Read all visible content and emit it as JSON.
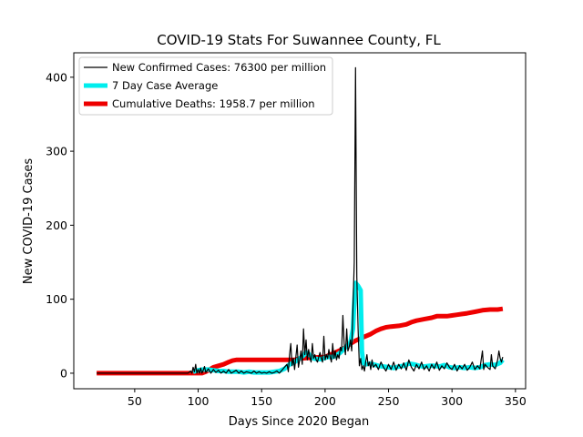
{
  "chart_data": {
    "type": "line",
    "title": "COVID-19 Stats For Suwannee County, FL",
    "xlabel": "Days Since 2020 Began",
    "ylabel": "New COVID-19 Cases",
    "xlim": [
      2,
      358
    ],
    "ylim": [
      -21,
      433
    ],
    "x_ticks": [
      50,
      100,
      150,
      200,
      250,
      300,
      350
    ],
    "y_ticks": [
      0,
      100,
      200,
      300,
      400
    ],
    "grid": false,
    "legend_position": "top-left",
    "series": [
      {
        "name": "New Confirmed Cases: 76300 per million",
        "color": "#000000",
        "points": [
          [
            20,
            0
          ],
          [
            30,
            0
          ],
          [
            40,
            0
          ],
          [
            50,
            0
          ],
          [
            60,
            0
          ],
          [
            70,
            0
          ],
          [
            80,
            0
          ],
          [
            88,
            0
          ],
          [
            92,
            0
          ],
          [
            94,
            3
          ],
          [
            95,
            0
          ],
          [
            96,
            8
          ],
          [
            97,
            2
          ],
          [
            98,
            12
          ],
          [
            99,
            0
          ],
          [
            100,
            5
          ],
          [
            101,
            0
          ],
          [
            102,
            7
          ],
          [
            103,
            0
          ],
          [
            104,
            4
          ],
          [
            105,
            9
          ],
          [
            106,
            1
          ],
          [
            108,
            6
          ],
          [
            110,
            0
          ],
          [
            112,
            5
          ],
          [
            114,
            1
          ],
          [
            116,
            4
          ],
          [
            118,
            0
          ],
          [
            120,
            3
          ],
          [
            122,
            0
          ],
          [
            124,
            5
          ],
          [
            126,
            0
          ],
          [
            128,
            2
          ],
          [
            130,
            4
          ],
          [
            132,
            0
          ],
          [
            134,
            3
          ],
          [
            136,
            0
          ],
          [
            138,
            2
          ],
          [
            140,
            1
          ],
          [
            142,
            0
          ],
          [
            144,
            3
          ],
          [
            146,
            0
          ],
          [
            148,
            2
          ],
          [
            150,
            0
          ],
          [
            152,
            1
          ],
          [
            154,
            0
          ],
          [
            156,
            2
          ],
          [
            158,
            0
          ],
          [
            160,
            1
          ],
          [
            162,
            3
          ],
          [
            164,
            0
          ],
          [
            166,
            4
          ],
          [
            168,
            8
          ],
          [
            170,
            12
          ],
          [
            171,
            2
          ],
          [
            172,
            25
          ],
          [
            173,
            40
          ],
          [
            174,
            10
          ],
          [
            175,
            20
          ],
          [
            176,
            5
          ],
          [
            177,
            22
          ],
          [
            178,
            38
          ],
          [
            179,
            8
          ],
          [
            180,
            18
          ],
          [
            181,
            30
          ],
          [
            182,
            12
          ],
          [
            183,
            60
          ],
          [
            184,
            25
          ],
          [
            185,
            45
          ],
          [
            186,
            18
          ],
          [
            187,
            32
          ],
          [
            188,
            22
          ],
          [
            189,
            15
          ],
          [
            190,
            40
          ],
          [
            191,
            20
          ],
          [
            192,
            25
          ],
          [
            193,
            18
          ],
          [
            194,
            15
          ],
          [
            195,
            22
          ],
          [
            196,
            28
          ],
          [
            197,
            20
          ],
          [
            198,
            15
          ],
          [
            199,
            50
          ],
          [
            200,
            18
          ],
          [
            201,
            25
          ],
          [
            202,
            20
          ],
          [
            203,
            32
          ],
          [
            204,
            22
          ],
          [
            205,
            15
          ],
          [
            206,
            40
          ],
          [
            207,
            20
          ],
          [
            208,
            30
          ],
          [
            209,
            18
          ],
          [
            210,
            25
          ],
          [
            211,
            20
          ],
          [
            212,
            35
          ],
          [
            213,
            30
          ],
          [
            214,
            78
          ],
          [
            215,
            40
          ],
          [
            216,
            25
          ],
          [
            217,
            60
          ],
          [
            218,
            30
          ],
          [
            219,
            35
          ],
          [
            220,
            45
          ],
          [
            221,
            30
          ],
          [
            222,
            90
          ],
          [
            223,
            150
          ],
          [
            224,
            413
          ],
          [
            225,
            130
          ],
          [
            226,
            60
          ],
          [
            227,
            10
          ],
          [
            228,
            20
          ],
          [
            229,
            5
          ],
          [
            230,
            10
          ],
          [
            231,
            3
          ],
          [
            232,
            15
          ],
          [
            233,
            25
          ],
          [
            234,
            10
          ],
          [
            235,
            15
          ],
          [
            236,
            5
          ],
          [
            237,
            18
          ],
          [
            238,
            8
          ],
          [
            240,
            12
          ],
          [
            242,
            5
          ],
          [
            244,
            15
          ],
          [
            246,
            8
          ],
          [
            248,
            3
          ],
          [
            250,
            12
          ],
          [
            252,
            5
          ],
          [
            254,
            15
          ],
          [
            256,
            4
          ],
          [
            258,
            12
          ],
          [
            260,
            6
          ],
          [
            262,
            14
          ],
          [
            264,
            4
          ],
          [
            266,
            18
          ],
          [
            268,
            8
          ],
          [
            270,
            3
          ],
          [
            272,
            12
          ],
          [
            274,
            6
          ],
          [
            276,
            15
          ],
          [
            278,
            5
          ],
          [
            280,
            10
          ],
          [
            282,
            3
          ],
          [
            284,
            12
          ],
          [
            286,
            6
          ],
          [
            288,
            15
          ],
          [
            290,
            4
          ],
          [
            292,
            10
          ],
          [
            294,
            6
          ],
          [
            296,
            14
          ],
          [
            298,
            8
          ],
          [
            300,
            5
          ],
          [
            302,
            12
          ],
          [
            304,
            3
          ],
          [
            306,
            10
          ],
          [
            308,
            6
          ],
          [
            310,
            12
          ],
          [
            312,
            4
          ],
          [
            314,
            8
          ],
          [
            316,
            15
          ],
          [
            318,
            5
          ],
          [
            320,
            10
          ],
          [
            322,
            6
          ],
          [
            324,
            30
          ],
          [
            325,
            5
          ],
          [
            326,
            12
          ],
          [
            328,
            8
          ],
          [
            330,
            5
          ],
          [
            331,
            25
          ],
          [
            332,
            10
          ],
          [
            334,
            6
          ],
          [
            336,
            18
          ],
          [
            337,
            30
          ],
          [
            338,
            20
          ],
          [
            339,
            15
          ],
          [
            340,
            22
          ]
        ]
      },
      {
        "name": "7 Day Case Average",
        "color": "#00eeee",
        "points": [
          [
            96,
            2
          ],
          [
            100,
            4
          ],
          [
            104,
            5
          ],
          [
            108,
            5
          ],
          [
            112,
            4
          ],
          [
            116,
            3
          ],
          [
            120,
            3
          ],
          [
            124,
            2
          ],
          [
            128,
            2
          ],
          [
            132,
            2
          ],
          [
            136,
            1
          ],
          [
            140,
            2
          ],
          [
            144,
            1
          ],
          [
            148,
            1
          ],
          [
            152,
            1
          ],
          [
            156,
            1
          ],
          [
            160,
            2
          ],
          [
            164,
            3
          ],
          [
            168,
            6
          ],
          [
            172,
            12
          ],
          [
            176,
            15
          ],
          [
            180,
            20
          ],
          [
            183,
            24
          ],
          [
            185,
            28
          ],
          [
            187,
            26
          ],
          [
            189,
            23
          ],
          [
            191,
            20
          ],
          [
            194,
            19
          ],
          [
            197,
            19
          ],
          [
            200,
            21
          ],
          [
            203,
            22
          ],
          [
            206,
            22
          ],
          [
            209,
            24
          ],
          [
            212,
            28
          ],
          [
            215,
            33
          ],
          [
            218,
            38
          ],
          [
            220,
            42
          ],
          [
            222,
            60
          ],
          [
            223,
            95
          ],
          [
            224,
            122
          ],
          [
            226,
            118
          ],
          [
            228,
            112
          ],
          [
            229,
            30
          ],
          [
            230,
            14
          ],
          [
            232,
            12
          ],
          [
            235,
            13
          ],
          [
            238,
            12
          ],
          [
            242,
            10
          ],
          [
            246,
            9
          ],
          [
            250,
            8
          ],
          [
            254,
            7
          ],
          [
            258,
            9
          ],
          [
            262,
            10
          ],
          [
            266,
            13
          ],
          [
            270,
            12
          ],
          [
            274,
            10
          ],
          [
            278,
            9
          ],
          [
            282,
            10
          ],
          [
            286,
            10
          ],
          [
            290,
            9
          ],
          [
            294,
            11
          ],
          [
            298,
            8
          ],
          [
            302,
            7
          ],
          [
            306,
            8
          ],
          [
            310,
            7
          ],
          [
            314,
            8
          ],
          [
            318,
            7
          ],
          [
            322,
            8
          ],
          [
            326,
            11
          ],
          [
            330,
            12
          ],
          [
            334,
            11
          ],
          [
            338,
            14
          ],
          [
            340,
            18
          ]
        ]
      },
      {
        "name": "Cumulative Deaths: 1958.7 per million",
        "color": "#ee0000",
        "points": [
          [
            20,
            0
          ],
          [
            60,
            0
          ],
          [
            100,
            0
          ],
          [
            103,
            0
          ],
          [
            106,
            2
          ],
          [
            109,
            5
          ],
          [
            112,
            8
          ],
          [
            116,
            10
          ],
          [
            120,
            12
          ],
          [
            124,
            15
          ],
          [
            127,
            17
          ],
          [
            130,
            18
          ],
          [
            140,
            18
          ],
          [
            150,
            18
          ],
          [
            160,
            18
          ],
          [
            170,
            18
          ],
          [
            176,
            18
          ],
          [
            180,
            20
          ],
          [
            190,
            21
          ],
          [
            200,
            22
          ],
          [
            204,
            25
          ],
          [
            208,
            28
          ],
          [
            212,
            31
          ],
          [
            216,
            35
          ],
          [
            220,
            40
          ],
          [
            224,
            44
          ],
          [
            228,
            47
          ],
          [
            232,
            50
          ],
          [
            236,
            53
          ],
          [
            240,
            57
          ],
          [
            244,
            60
          ],
          [
            248,
            62
          ],
          [
            252,
            63
          ],
          [
            258,
            64
          ],
          [
            264,
            66
          ],
          [
            268,
            69
          ],
          [
            272,
            71
          ],
          [
            278,
            73
          ],
          [
            284,
            75
          ],
          [
            288,
            77
          ],
          [
            296,
            77
          ],
          [
            300,
            78
          ],
          [
            304,
            79
          ],
          [
            308,
            80
          ],
          [
            312,
            81
          ],
          [
            318,
            83
          ],
          [
            324,
            85
          ],
          [
            330,
            86
          ],
          [
            336,
            86
          ],
          [
            340,
            87
          ]
        ]
      }
    ]
  }
}
